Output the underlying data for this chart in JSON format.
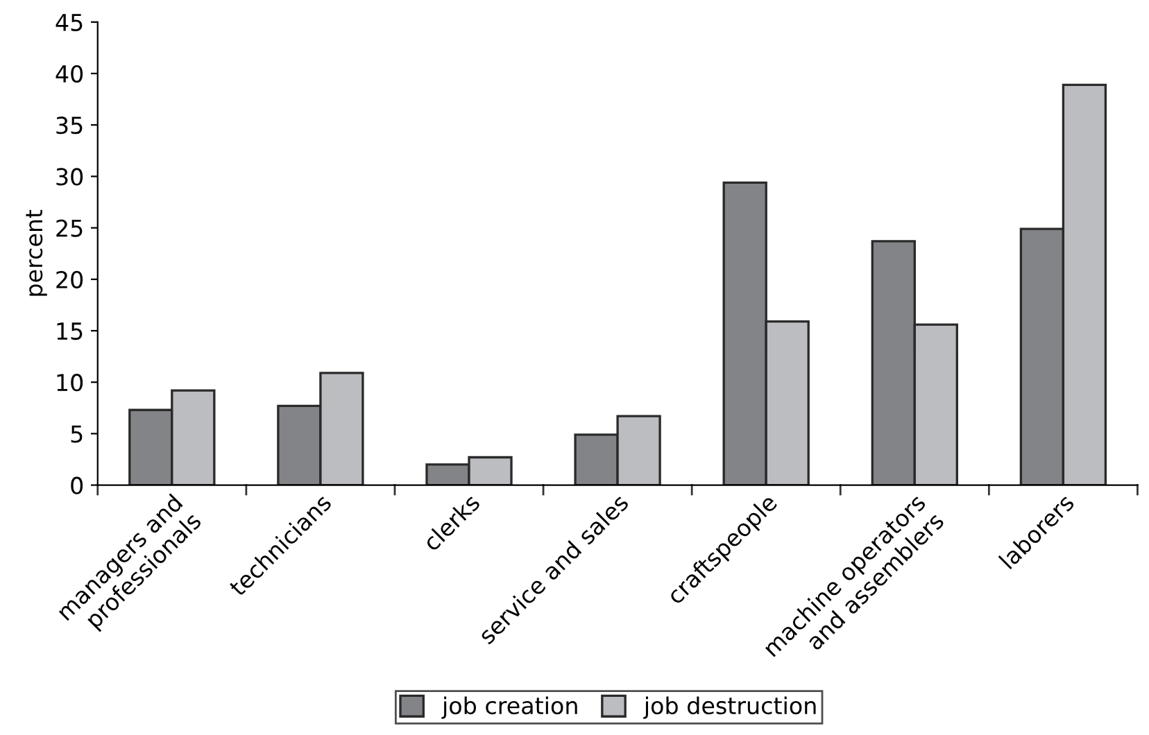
{
  "chart_data": {
    "type": "bar",
    "ylabel": "percent",
    "categories": [
      "managers and\nprofessionals",
      "technicians",
      "clerks",
      "service and sales",
      "craftspeople",
      "machine operators\nand assemblers",
      "laborers"
    ],
    "series": [
      {
        "name": "job creation",
        "color": "#838488",
        "values": [
          7.3,
          7.7,
          2.0,
          4.9,
          29.4,
          23.7,
          24.9
        ]
      },
      {
        "name": "job destruction",
        "color": "#bcbdc1",
        "values": [
          9.2,
          10.9,
          2.7,
          6.7,
          15.9,
          15.6,
          38.9
        ]
      }
    ],
    "ylim": [
      0,
      45
    ],
    "yticks": [
      0,
      5,
      10,
      15,
      20,
      25,
      30,
      35,
      40,
      45
    ],
    "grid": false,
    "legend": "bottom"
  }
}
